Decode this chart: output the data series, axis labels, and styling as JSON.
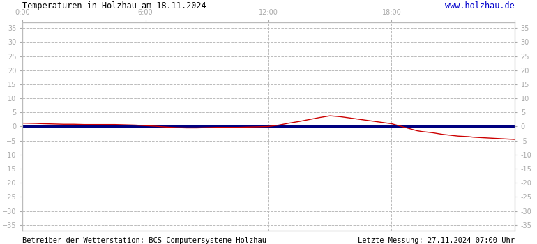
{
  "title": "Temperaturen in Holzhau am 18.11.2024",
  "url_text": "www.holzhau.de",
  "footer_left": "Betreiber der Wetterstation: BCS Computersysteme Holzhau",
  "footer_right": "Letzte Messung: 27.11.2024 07:00 Uhr",
  "xlim": [
    0,
    1440
  ],
  "ylim": [
    -37,
    37
  ],
  "yticks": [
    -35,
    -30,
    -25,
    -20,
    -15,
    -10,
    -5,
    0,
    5,
    10,
    15,
    20,
    25,
    30,
    35
  ],
  "xtick_positions": [
    0,
    360,
    720,
    1080,
    1440
  ],
  "xtick_labels": [
    "0:00",
    "6:00",
    "12:00",
    "18:00",
    ""
  ],
  "bg_color": "#ffffff",
  "plot_bg_color": "#ffffff",
  "grid_color": "#bbbbbb",
  "line_color_red": "#cc0000",
  "line_color_blue": "#000080",
  "title_color": "#000000",
  "url_color": "#0000cc",
  "footer_color": "#000000",
  "tick_label_color": "#aaaaaa",
  "temperature_data": [
    [
      0,
      1.2
    ],
    [
      20,
      1.15
    ],
    [
      40,
      1.1
    ],
    [
      60,
      1.0
    ],
    [
      90,
      0.9
    ],
    [
      120,
      0.8
    ],
    [
      150,
      0.8
    ],
    [
      180,
      0.7
    ],
    [
      210,
      0.7
    ],
    [
      240,
      0.7
    ],
    [
      270,
      0.7
    ],
    [
      300,
      0.6
    ],
    [
      330,
      0.5
    ],
    [
      360,
      0.3
    ],
    [
      390,
      0.1
    ],
    [
      420,
      -0.2
    ],
    [
      450,
      -0.4
    ],
    [
      480,
      -0.5
    ],
    [
      510,
      -0.5
    ],
    [
      540,
      -0.4
    ],
    [
      570,
      -0.3
    ],
    [
      600,
      -0.3
    ],
    [
      630,
      -0.3
    ],
    [
      660,
      -0.2
    ],
    [
      690,
      -0.1
    ],
    [
      720,
      0.0
    ],
    [
      750,
      0.5
    ],
    [
      780,
      1.2
    ],
    [
      810,
      1.8
    ],
    [
      840,
      2.5
    ],
    [
      870,
      3.2
    ],
    [
      900,
      3.8
    ],
    [
      930,
      3.5
    ],
    [
      960,
      3.0
    ],
    [
      990,
      2.5
    ],
    [
      1020,
      2.0
    ],
    [
      1050,
      1.5
    ],
    [
      1080,
      1.0
    ],
    [
      1095,
      0.5
    ],
    [
      1110,
      0.0
    ],
    [
      1125,
      -0.5
    ],
    [
      1140,
      -1.0
    ],
    [
      1155,
      -1.5
    ],
    [
      1170,
      -1.8
    ],
    [
      1185,
      -2.0
    ],
    [
      1200,
      -2.2
    ],
    [
      1215,
      -2.5
    ],
    [
      1230,
      -2.8
    ],
    [
      1245,
      -3.0
    ],
    [
      1260,
      -3.2
    ],
    [
      1275,
      -3.4
    ],
    [
      1290,
      -3.5
    ],
    [
      1305,
      -3.6
    ],
    [
      1320,
      -3.8
    ],
    [
      1335,
      -3.9
    ],
    [
      1350,
      -4.0
    ],
    [
      1365,
      -4.1
    ],
    [
      1380,
      -4.2
    ],
    [
      1395,
      -4.3
    ],
    [
      1410,
      -4.4
    ],
    [
      1425,
      -4.5
    ],
    [
      1440,
      -4.6
    ]
  ]
}
